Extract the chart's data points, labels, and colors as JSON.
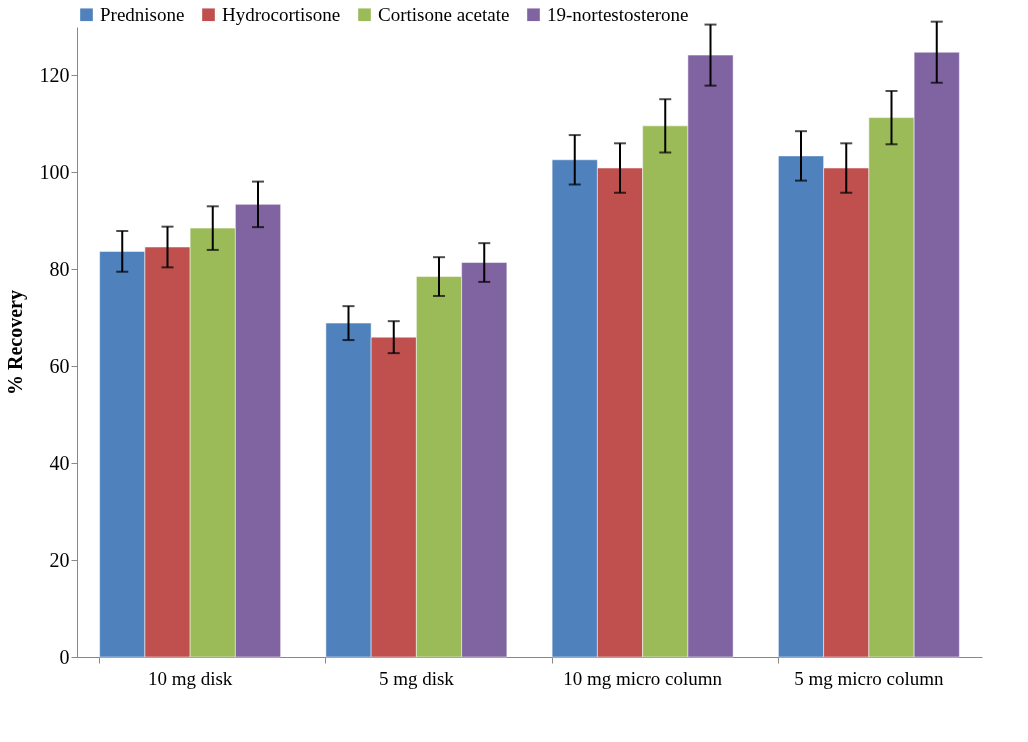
{
  "chart_data": {
    "type": "bar",
    "ylabel": "%  Recovery",
    "categories": [
      "10 mg disk",
      "5 mg disk",
      "10 mg micro column",
      "5 mg micro column"
    ],
    "series": [
      {
        "name": "Prednisone",
        "color": "#4f81bd",
        "values": [
          83.7,
          68.9,
          102.6,
          103.4
        ],
        "errors": [
          4.2,
          3.5,
          5.1,
          5.1
        ]
      },
      {
        "name": "Hydrocortisone",
        "color": "#c0504d",
        "values": [
          84.6,
          66,
          100.9,
          100.9
        ],
        "errors": [
          4.2,
          3.3,
          5.1,
          5.1
        ]
      },
      {
        "name": "Cortisone acetate",
        "color": "#9bbb59",
        "values": [
          88.5,
          78.5,
          109.6,
          111.3
        ],
        "errors": [
          4.5,
          4,
          5.5,
          5.5
        ]
      },
      {
        "name": "19-nortestosterone",
        "color": "#8064a2",
        "values": [
          93.4,
          81.4,
          124.2,
          124.8
        ],
        "errors": [
          4.7,
          4,
          6.3,
          6.3
        ]
      }
    ],
    "ylim": [
      0,
      130
    ],
    "yticks": [
      0,
      20,
      40,
      60,
      80,
      100,
      120
    ],
    "grid": false,
    "legend": "top"
  }
}
